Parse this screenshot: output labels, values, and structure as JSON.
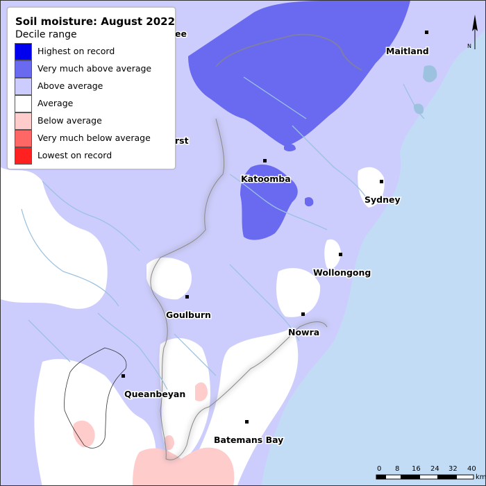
{
  "legend": {
    "title": "Soil moisture: August 2022",
    "subtitle": "Decile range",
    "items": [
      {
        "label": "Highest on record",
        "color": "#0000ee"
      },
      {
        "label": "Very much above average",
        "color": "#6a6af0"
      },
      {
        "label": "Above average",
        "color": "#ccccff"
      },
      {
        "label": "Average",
        "color": "#ffffff"
      },
      {
        "label": "Below average",
        "color": "#ffcccc"
      },
      {
        "label": "Very much below average",
        "color": "#ff6666"
      },
      {
        "label": "Lowest on record",
        "color": "#ff2020"
      }
    ]
  },
  "map": {
    "colors": {
      "ocean": "#c3dcf5",
      "above_average": "#cccdfc",
      "very_much_above_average": "#6a6af0",
      "below_average": "#ffcccc",
      "river": "#9cc2e0"
    },
    "towns": {
      "maitland": "Maitland",
      "katoomba": "Katoomba",
      "sydney": "Sydney",
      "wollongong": "Wollongong",
      "goulburn": "Goulburn",
      "nowra": "Nowra",
      "queanbeyan": "Queanbeyan",
      "batemans_bay": "Batemans Bay",
      "partial_top": "ee",
      "partial_mid": "rst"
    }
  },
  "scale_bar": {
    "ticks": [
      "0",
      "8",
      "16",
      "24",
      "32",
      "40"
    ],
    "unit": "km"
  },
  "north_arrow": {
    "label": "N"
  }
}
